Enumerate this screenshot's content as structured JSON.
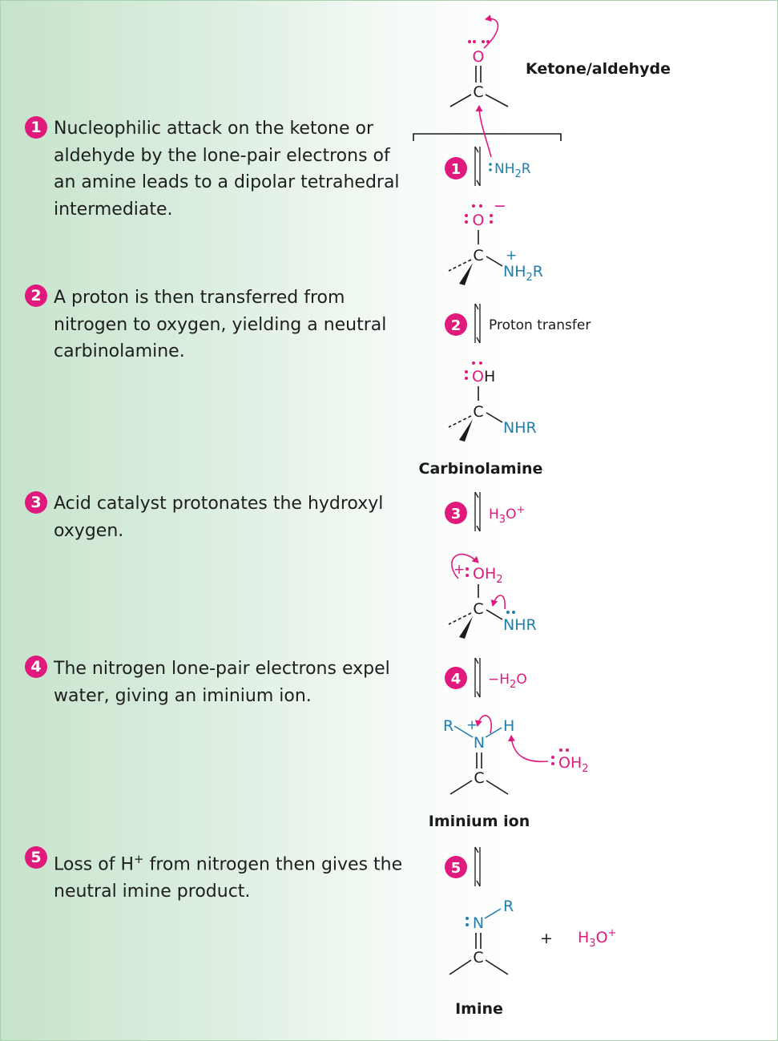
{
  "steps": [
    {
      "num": "1",
      "text": "Nucleophilic attack on the ketone or aldehyde by the lone-pair electrons of an amine leads to a dipolar tetrahedral intermediate."
    },
    {
      "num": "2",
      "text": "A proton is then transferred from nitrogen to oxygen, yielding a neutral carbinolamine."
    },
    {
      "num": "3",
      "text": "Acid catalyst protonates the hydroxyl oxygen."
    },
    {
      "num": "4",
      "text": "The nitrogen lone-pair electrons expel water, giving an iminium ion."
    },
    {
      "num": "5",
      "text": "Loss of H+ from nitrogen then gives the neutral imine product."
    }
  ],
  "labels": {
    "ketone": "Ketone/aldehyde",
    "carbinolamine": "Carbinolamine",
    "iminium": "Iminium ion",
    "imine": "Imine"
  },
  "reagents": {
    "step1": "NH2R",
    "step2": "Proton transfer",
    "step3": "H3O+",
    "step4": "−H2O",
    "step5_product": "H3O+",
    "plus": "+"
  },
  "atoms": {
    "O": "O",
    "C": "C",
    "N": "N",
    "H": "H",
    "R": "R",
    "OH": "OH",
    "NHR": "NHR",
    "NH2R": "NH2R",
    "OH2": "OH2"
  },
  "charges": {
    "minus": "−",
    "plus": "+"
  },
  "colors": {
    "magenta": "#e0197d",
    "blue": "#1f7fae",
    "black": "#1a1a1a",
    "panel_green": "#c6e3cb"
  }
}
